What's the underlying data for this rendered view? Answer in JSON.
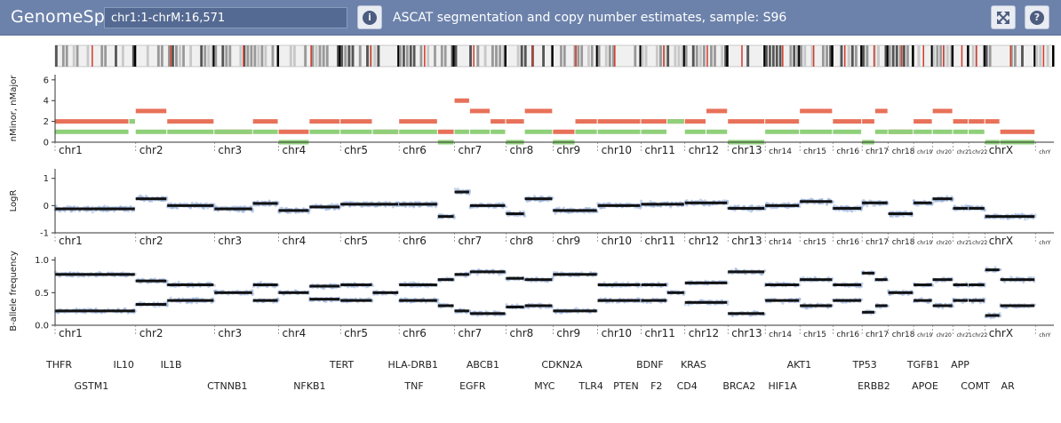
{
  "toolbar": {
    "app_title": "GenomeSpy",
    "locus": "chr1:1-chrM:16,571",
    "view_title": "ASCAT segmentation and copy number estimates, sample: S96",
    "info_icon": "info-circle-icon",
    "fullscreen_icon": "expand-arrows-icon",
    "help_icon": "question-circle-icon"
  },
  "colors": {
    "toolbar": "#6c82ab",
    "nmajor": "#e8715a",
    "nminor": "#8fd07a",
    "segment": "#111111",
    "probe": "#9db4dc"
  },
  "chromosomes": [
    {
      "name": "chr1",
      "size": 249
    },
    {
      "name": "chr2",
      "size": 243
    },
    {
      "name": "chr3",
      "size": 198
    },
    {
      "name": "chr4",
      "size": 191
    },
    {
      "name": "chr5",
      "size": 181
    },
    {
      "name": "chr6",
      "size": 171
    },
    {
      "name": "chr7",
      "size": 159
    },
    {
      "name": "chr8",
      "size": 145
    },
    {
      "name": "chr9",
      "size": 138
    },
    {
      "name": "chr10",
      "size": 134
    },
    {
      "name": "chr11",
      "size": 135
    },
    {
      "name": "chr12",
      "size": 133
    },
    {
      "name": "chr13",
      "size": 115
    },
    {
      "name": "chr14",
      "size": 107
    },
    {
      "name": "chr15",
      "size": 102
    },
    {
      "name": "chr16",
      "size": 90
    },
    {
      "name": "chr17",
      "size": 81
    },
    {
      "name": "chr18",
      "size": 78
    },
    {
      "name": "chr19",
      "size": 59
    },
    {
      "name": "chr20",
      "size": 63
    },
    {
      "name": "chr21",
      "size": 48
    },
    {
      "name": "chr22",
      "size": 51
    },
    {
      "name": "chrX",
      "size": 155
    },
    {
      "name": "chrY",
      "size": 57
    }
  ],
  "tracks": {
    "copy_number": {
      "ylabel": "nMinor, nMajor",
      "ticks": [
        "0",
        "2",
        "4",
        "6"
      ],
      "ylim": [
        0,
        6.5
      ],
      "segments": [
        {
          "chr": "chr1",
          "start": 0,
          "end": 0.92,
          "nmajor": 2,
          "nminor": 1
        },
        {
          "chr": "chr1",
          "start": 0.92,
          "end": 1,
          "nmajor": 2,
          "nminor": 2
        },
        {
          "chr": "chr2",
          "start": 0,
          "end": 0.4,
          "nmajor": 3,
          "nminor": 1
        },
        {
          "chr": "chr2",
          "start": 0.4,
          "end": 1,
          "nmajor": 2,
          "nminor": 1
        },
        {
          "chr": "chr3",
          "start": 0,
          "end": 0.6,
          "nmajor": 1,
          "nminor": 1
        },
        {
          "chr": "chr3",
          "start": 0.6,
          "end": 1,
          "nmajor": 2,
          "nminor": 1
        },
        {
          "chr": "chr4",
          "start": 0,
          "end": 0.5,
          "nmajor": 1,
          "nminor": 0
        },
        {
          "chr": "chr4",
          "start": 0.5,
          "end": 1,
          "nmajor": 2,
          "nminor": 1
        },
        {
          "chr": "chr5",
          "start": 0,
          "end": 0.55,
          "nmajor": 2,
          "nminor": 1
        },
        {
          "chr": "chr5",
          "start": 0.55,
          "end": 1,
          "nmajor": 1,
          "nminor": 1
        },
        {
          "chr": "chr6",
          "start": 0,
          "end": 0.7,
          "nmajor": 2,
          "nminor": 1
        },
        {
          "chr": "chr6",
          "start": 0.7,
          "end": 1,
          "nmajor": 1,
          "nminor": 0
        },
        {
          "chr": "chr7",
          "start": 0,
          "end": 0.3,
          "nmajor": 4,
          "nminor": 1
        },
        {
          "chr": "chr7",
          "start": 0.3,
          "end": 0.7,
          "nmajor": 3,
          "nminor": 1
        },
        {
          "chr": "chr7",
          "start": 0.7,
          "end": 1,
          "nmajor": 2,
          "nminor": 1
        },
        {
          "chr": "chr8",
          "start": 0,
          "end": 0.4,
          "nmajor": 2,
          "nminor": 0
        },
        {
          "chr": "chr8",
          "start": 0.4,
          "end": 1,
          "nmajor": 3,
          "nminor": 1
        },
        {
          "chr": "chr9",
          "start": 0,
          "end": 0.5,
          "nmajor": 1,
          "nminor": 0
        },
        {
          "chr": "chr9",
          "start": 0.5,
          "end": 1,
          "nmajor": 2,
          "nminor": 1
        },
        {
          "chr": "chr10",
          "start": 0,
          "end": 1,
          "nmajor": 2,
          "nminor": 1
        },
        {
          "chr": "chr11",
          "start": 0,
          "end": 0.6,
          "nmajor": 2,
          "nminor": 1
        },
        {
          "chr": "chr11",
          "start": 0.6,
          "end": 1,
          "nmajor": 2,
          "nminor": 2
        },
        {
          "chr": "chr12",
          "start": 0,
          "end": 0.5,
          "nmajor": 2,
          "nminor": 1
        },
        {
          "chr": "chr12",
          "start": 0.5,
          "end": 1,
          "nmajor": 3,
          "nminor": 1
        },
        {
          "chr": "chr13",
          "start": 0,
          "end": 1,
          "nmajor": 2,
          "nminor": 0
        },
        {
          "chr": "chr14",
          "start": 0,
          "end": 1,
          "nmajor": 2,
          "nminor": 1
        },
        {
          "chr": "chr15",
          "start": 0,
          "end": 1,
          "nmajor": 3,
          "nminor": 1
        },
        {
          "chr": "chr16",
          "start": 0,
          "end": 1,
          "nmajor": 2,
          "nminor": 1
        },
        {
          "chr": "chr17",
          "start": 0,
          "end": 0.5,
          "nmajor": 2,
          "nminor": 0
        },
        {
          "chr": "chr17",
          "start": 0.5,
          "end": 1,
          "nmajor": 3,
          "nminor": 1
        },
        {
          "chr": "chr18",
          "start": 0,
          "end": 1,
          "nmajor": 1,
          "nminor": 1
        },
        {
          "chr": "chr19",
          "start": 0,
          "end": 1,
          "nmajor": 2,
          "nminor": 1
        },
        {
          "chr": "chr20",
          "start": 0,
          "end": 1,
          "nmajor": 3,
          "nminor": 1
        },
        {
          "chr": "chr21",
          "start": 0,
          "end": 1,
          "nmajor": 2,
          "nminor": 1
        },
        {
          "chr": "chr22",
          "start": 0,
          "end": 1,
          "nmajor": 2,
          "nminor": 1
        },
        {
          "chr": "chrX",
          "start": 0,
          "end": 0.3,
          "nmajor": 2,
          "nminor": 0
        },
        {
          "chr": "chrX",
          "start": 0.3,
          "end": 1,
          "nmajor": 1,
          "nminor": 0
        }
      ]
    },
    "logr": {
      "ylabel": "LogR",
      "ticks": [
        "-1",
        "0",
        "1"
      ],
      "ylim": [
        -1,
        1.35
      ],
      "segments": [
        {
          "chr": "chr1",
          "start": 0,
          "end": 1,
          "value": -0.12
        },
        {
          "chr": "chr2",
          "start": 0,
          "end": 0.4,
          "value": 0.25
        },
        {
          "chr": "chr2",
          "start": 0.4,
          "end": 1,
          "value": 0.0
        },
        {
          "chr": "chr3",
          "start": 0,
          "end": 0.6,
          "value": -0.12
        },
        {
          "chr": "chr3",
          "start": 0.6,
          "end": 1,
          "value": 0.08
        },
        {
          "chr": "chr4",
          "start": 0,
          "end": 0.5,
          "value": -0.18
        },
        {
          "chr": "chr4",
          "start": 0.5,
          "end": 1,
          "value": -0.05
        },
        {
          "chr": "chr5",
          "start": 0,
          "end": 1,
          "value": 0.05
        },
        {
          "chr": "chr6",
          "start": 0,
          "end": 0.7,
          "value": 0.05
        },
        {
          "chr": "chr6",
          "start": 0.7,
          "end": 1,
          "value": -0.4
        },
        {
          "chr": "chr7",
          "start": 0,
          "end": 0.3,
          "value": 0.5
        },
        {
          "chr": "chr7",
          "start": 0.3,
          "end": 1,
          "value": 0.0
        },
        {
          "chr": "chr8",
          "start": 0,
          "end": 0.4,
          "value": -0.3
        },
        {
          "chr": "chr8",
          "start": 0.4,
          "end": 1,
          "value": 0.25
        },
        {
          "chr": "chr9",
          "start": 0,
          "end": 1,
          "value": -0.18
        },
        {
          "chr": "chr10",
          "start": 0,
          "end": 1,
          "value": 0.0
        },
        {
          "chr": "chr11",
          "start": 0,
          "end": 1,
          "value": 0.05
        },
        {
          "chr": "chr12",
          "start": 0,
          "end": 1,
          "value": 0.1
        },
        {
          "chr": "chr13",
          "start": 0,
          "end": 1,
          "value": -0.1
        },
        {
          "chr": "chr14",
          "start": 0,
          "end": 1,
          "value": 0.0
        },
        {
          "chr": "chr15",
          "start": 0,
          "end": 1,
          "value": 0.15
        },
        {
          "chr": "chr16",
          "start": 0,
          "end": 1,
          "value": -0.1
        },
        {
          "chr": "chr17",
          "start": 0,
          "end": 1,
          "value": 0.1
        },
        {
          "chr": "chr18",
          "start": 0,
          "end": 1,
          "value": -0.3
        },
        {
          "chr": "chr19",
          "start": 0,
          "end": 1,
          "value": 0.1
        },
        {
          "chr": "chr20",
          "start": 0,
          "end": 1,
          "value": 0.25
        },
        {
          "chr": "chr21",
          "start": 0,
          "end": 1,
          "value": -0.1
        },
        {
          "chr": "chr22",
          "start": 0,
          "end": 1,
          "value": -0.1
        },
        {
          "chr": "chrX",
          "start": 0,
          "end": 1,
          "value": -0.4
        }
      ]
    },
    "baf": {
      "ylabel": "B-allele frequency",
      "ticks": [
        "0.0",
        "0.5",
        "1.0"
      ],
      "ylim": [
        0,
        1.05
      ],
      "segments": [
        {
          "chr": "chr1",
          "start": 0,
          "end": 1,
          "value": 0.22
        },
        {
          "chr": "chr2",
          "start": 0,
          "end": 0.4,
          "value": 0.32
        },
        {
          "chr": "chr2",
          "start": 0.4,
          "end": 1,
          "value": 0.38
        },
        {
          "chr": "chr3",
          "start": 0,
          "end": 0.6,
          "value": 0.5
        },
        {
          "chr": "chr3",
          "start": 0.6,
          "end": 1,
          "value": 0.38
        },
        {
          "chr": "chr4",
          "start": 0,
          "end": 0.5,
          "value": 0.5
        },
        {
          "chr": "chr4",
          "start": 0.5,
          "end": 1,
          "value": 0.4
        },
        {
          "chr": "chr5",
          "start": 0,
          "end": 0.55,
          "value": 0.38
        },
        {
          "chr": "chr5",
          "start": 0.55,
          "end": 1,
          "value": 0.5
        },
        {
          "chr": "chr6",
          "start": 0,
          "end": 0.7,
          "value": 0.38
        },
        {
          "chr": "chr6",
          "start": 0.7,
          "end": 1,
          "value": 0.3
        },
        {
          "chr": "chr7",
          "start": 0,
          "end": 0.3,
          "value": 0.22
        },
        {
          "chr": "chr7",
          "start": 0.3,
          "end": 1,
          "value": 0.18
        },
        {
          "chr": "chr8",
          "start": 0,
          "end": 0.4,
          "value": 0.28
        },
        {
          "chr": "chr8",
          "start": 0.4,
          "end": 1,
          "value": 0.3
        },
        {
          "chr": "chr9",
          "start": 0,
          "end": 1,
          "value": 0.22
        },
        {
          "chr": "chr10",
          "start": 0,
          "end": 1,
          "value": 0.38
        },
        {
          "chr": "chr11",
          "start": 0,
          "end": 0.6,
          "value": 0.38
        },
        {
          "chr": "chr11",
          "start": 0.6,
          "end": 1,
          "value": 0.5
        },
        {
          "chr": "chr12",
          "start": 0,
          "end": 1,
          "value": 0.35
        },
        {
          "chr": "chr13",
          "start": 0,
          "end": 1,
          "value": 0.18
        },
        {
          "chr": "chr14",
          "start": 0,
          "end": 1,
          "value": 0.38
        },
        {
          "chr": "chr15",
          "start": 0,
          "end": 1,
          "value": 0.3
        },
        {
          "chr": "chr16",
          "start": 0,
          "end": 1,
          "value": 0.38
        },
        {
          "chr": "chr17",
          "start": 0,
          "end": 0.5,
          "value": 0.2
        },
        {
          "chr": "chr17",
          "start": 0.5,
          "end": 1,
          "value": 0.3
        },
        {
          "chr": "chr18",
          "start": 0,
          "end": 1,
          "value": 0.5
        },
        {
          "chr": "chr19",
          "start": 0,
          "end": 1,
          "value": 0.38
        },
        {
          "chr": "chr20",
          "start": 0,
          "end": 1,
          "value": 0.3
        },
        {
          "chr": "chr21",
          "start": 0,
          "end": 1,
          "value": 0.38
        },
        {
          "chr": "chr22",
          "start": 0,
          "end": 1,
          "value": 0.38
        },
        {
          "chr": "chrX",
          "start": 0,
          "end": 0.3,
          "value": 0.15
        },
        {
          "chr": "chrX",
          "start": 0.3,
          "end": 1,
          "value": 0.3
        }
      ]
    }
  },
  "genes": [
    {
      "name": "MTHFR",
      "label": "THFR",
      "chr": "chr1",
      "pos": 0.05,
      "row": 0
    },
    {
      "name": "GSTM1",
      "label": "GSTM1",
      "chr": "chr1",
      "pos": 0.45,
      "row": 1
    },
    {
      "name": "IL10",
      "label": "IL10",
      "chr": "chr1",
      "pos": 0.85,
      "row": 0
    },
    {
      "name": "IL1B",
      "label": "IL1B",
      "chr": "chr2",
      "pos": 0.45,
      "row": 0
    },
    {
      "name": "CTNNB1",
      "label": "CTNNB1",
      "chr": "chr3",
      "pos": 0.2,
      "row": 1
    },
    {
      "name": "NFKB1",
      "label": "NFKB1",
      "chr": "chr4",
      "pos": 0.5,
      "row": 1
    },
    {
      "name": "TERT",
      "label": "TERT",
      "chr": "chr5",
      "pos": 0.02,
      "row": 0
    },
    {
      "name": "HLA-DRB1",
      "label": "HLA-DRB1",
      "chr": "chr6",
      "pos": 0.25,
      "row": 0
    },
    {
      "name": "TNF",
      "label": "TNF",
      "chr": "chr6",
      "pos": 0.27,
      "row": 1
    },
    {
      "name": "ABCB1",
      "label": "ABCB1",
      "chr": "chr7",
      "pos": 0.55,
      "row": 0
    },
    {
      "name": "EGFR",
      "label": "EGFR",
      "chr": "chr7",
      "pos": 0.35,
      "row": 1
    },
    {
      "name": "CDKN2A",
      "label": "CDKN2A",
      "chr": "chr9",
      "pos": 0.2,
      "row": 0
    },
    {
      "name": "MYC",
      "label": "MYC",
      "chr": "chr8",
      "pos": 0.82,
      "row": 1
    },
    {
      "name": "TLR4",
      "label": "TLR4",
      "chr": "chr9",
      "pos": 0.85,
      "row": 1
    },
    {
      "name": "PTEN",
      "label": "PTEN",
      "chr": "chr10",
      "pos": 0.65,
      "row": 1
    },
    {
      "name": "BDNF",
      "label": "BDNF",
      "chr": "chr11",
      "pos": 0.2,
      "row": 0
    },
    {
      "name": "F2",
      "label": "F2",
      "chr": "chr11",
      "pos": 0.35,
      "row": 1
    },
    {
      "name": "KRAS",
      "label": "KRAS",
      "chr": "chr12",
      "pos": 0.2,
      "row": 0
    },
    {
      "name": "CD4",
      "label": "CD4",
      "chr": "chr12",
      "pos": 0.05,
      "row": 1
    },
    {
      "name": "BRCA2",
      "label": "BRCA2",
      "chr": "chr13",
      "pos": 0.3,
      "row": 1
    },
    {
      "name": "AKT1",
      "label": "AKT1",
      "chr": "chr14",
      "pos": 0.98,
      "row": 0
    },
    {
      "name": "HIF1A",
      "label": "HIF1A",
      "chr": "chr14",
      "pos": 0.5,
      "row": 1
    },
    {
      "name": "TP53",
      "label": "TP53",
      "chr": "chr17",
      "pos": 0.1,
      "row": 0
    },
    {
      "name": "ERBB2",
      "label": "ERBB2",
      "chr": "chr17",
      "pos": 0.45,
      "row": 1
    },
    {
      "name": "TGFB1",
      "label": "TGFB1",
      "chr": "chr19",
      "pos": 0.5,
      "row": 0
    },
    {
      "name": "APOE",
      "label": "APOE",
      "chr": "chr19",
      "pos": 0.6,
      "row": 1
    },
    {
      "name": "APP",
      "label": "APP",
      "chr": "chr21",
      "pos": 0.45,
      "row": 0
    },
    {
      "name": "COMT",
      "label": "COMT",
      "chr": "chr22",
      "pos": 0.4,
      "row": 1
    },
    {
      "name": "AR",
      "label": "AR",
      "chr": "chrX",
      "pos": 0.45,
      "row": 1
    }
  ]
}
